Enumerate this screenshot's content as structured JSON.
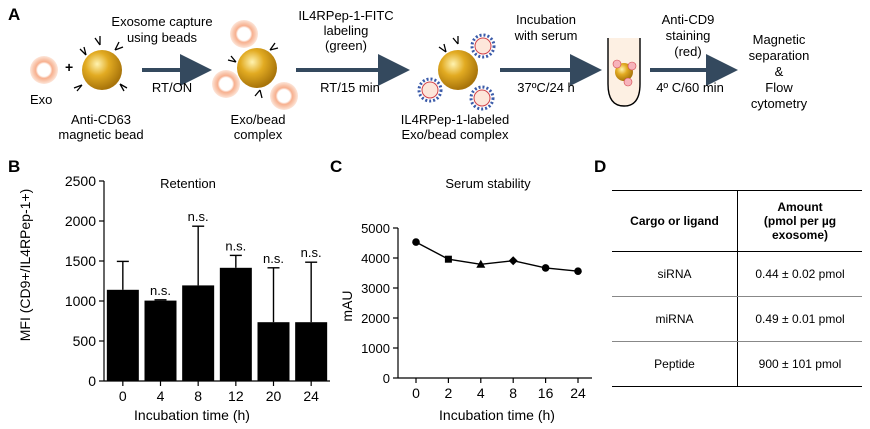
{
  "panel_a": {
    "label": "A",
    "exo": "Exo",
    "bead_label": [
      "Anti-CD63",
      "magnetic bead"
    ],
    "step1": [
      "Exosome capture",
      "using beads"
    ],
    "arrow1": "RT/ON",
    "complex1": [
      "Exo/bead",
      "complex"
    ],
    "step2": [
      "IL4RPep-1-FITC",
      "labeling",
      "(green)"
    ],
    "arrow2": "RT/15 min",
    "complex2": [
      "IL4RPep-1-labeled",
      "Exo/bead complex"
    ],
    "step3": [
      "Incubation",
      "with serum"
    ],
    "arrow3": "37ºC/24 h",
    "step4": [
      "Anti-CD9",
      "staining",
      "(red)"
    ],
    "arrow4": "4º C/60 min",
    "final": [
      "Magnetic",
      "separation",
      "&",
      "Flow",
      "cytometry"
    ],
    "colors": {
      "bead": "#d9a21b",
      "exo": "#f29a72",
      "arrow": "#34495e",
      "pep_blue": "#3b5ba9",
      "pep_red": "#d1434a"
    }
  },
  "panel_b": {
    "label": "B"
  },
  "panel_c": {
    "label": "C"
  },
  "panel_d": {
    "label": "D",
    "headers": [
      "Cargo or ligand",
      "Amount\n(pmol per µg\nexosome)"
    ],
    "rows": [
      [
        "siRNA",
        "0.44 ± 0.02 pmol"
      ],
      [
        "miRNA",
        "0.49 ± 0.01 pmol"
      ],
      [
        "Peptide",
        "900 ± 101  pmol"
      ]
    ]
  },
  "chart_data": [
    {
      "type": "bar",
      "title": "Retention",
      "xlabel": "Incubation time (h)",
      "ylabel": "MFI (CD9+/IL4RPep-1+)",
      "categories": [
        "0",
        "4",
        "8",
        "12",
        "20",
        "24"
      ],
      "values": [
        1140,
        1005,
        1195,
        1415,
        735,
        735
      ],
      "errors": [
        355,
        10,
        740,
        155,
        680,
        750
      ],
      "annotations": [
        "",
        "n.s.",
        "n.s.",
        "n.s.",
        "n.s.",
        "n.s."
      ],
      "ylim": [
        0,
        2500
      ],
      "yticks": [
        0,
        500,
        1000,
        1500,
        2000,
        2500
      ],
      "color": "#000000"
    },
    {
      "type": "line",
      "title": "Serum stability",
      "xlabel": "Incubation time (h)",
      "ylabel": "mAU",
      "categories": [
        "0",
        "2",
        "4",
        "8",
        "16",
        "24"
      ],
      "values": [
        4530,
        3960,
        3790,
        3910,
        3670,
        3560
      ],
      "markers": [
        "circle",
        "square",
        "triangle",
        "diamond",
        "circle",
        "circle"
      ],
      "ylim": [
        0,
        5000
      ],
      "yticks": [
        0,
        1000,
        2000,
        3000,
        4000,
        5000
      ]
    }
  ]
}
